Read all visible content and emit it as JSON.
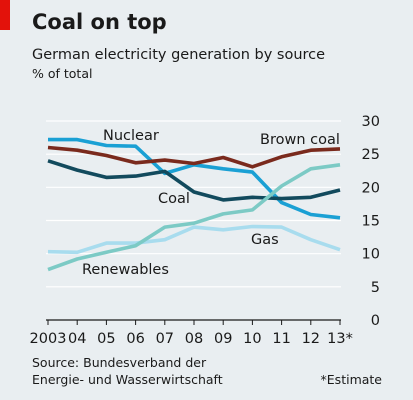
{
  "chart_data": {
    "type": "line",
    "title": "Coal on top",
    "subtitle": "German electricity generation by source",
    "unit_label": "% of total",
    "x": [
      2003,
      2004,
      2005,
      2006,
      2007,
      2008,
      2009,
      2010,
      2011,
      2012,
      2013
    ],
    "x_tick_labels": [
      "2003",
      "04",
      "05",
      "06",
      "07",
      "08",
      "09",
      "10",
      "11",
      "12",
      "13*"
    ],
    "ylim": [
      0,
      30
    ],
    "y_ticks": [
      0,
      5,
      10,
      15,
      20,
      25,
      30
    ],
    "y_tick_labels": [
      "0",
      "5",
      "10",
      "15",
      "20",
      "25",
      "30"
    ],
    "y_axis_side": "right",
    "grid": true,
    "series": [
      {
        "name": "Nuclear",
        "color": "#1aa0d4",
        "values": [
          27.2,
          27.2,
          26.3,
          26.2,
          22.1,
          23.4,
          22.8,
          22.3,
          17.7,
          15.9,
          15.4
        ]
      },
      {
        "name": "Brown coal",
        "color": "#7a2a1d",
        "values": [
          26.0,
          25.6,
          24.8,
          23.7,
          24.1,
          23.6,
          24.5,
          23.1,
          24.6,
          25.6,
          25.8
        ]
      },
      {
        "name": "Coal",
        "color": "#124a5d",
        "values": [
          24.0,
          22.6,
          21.5,
          21.7,
          22.4,
          19.3,
          18.1,
          18.5,
          18.3,
          18.5,
          19.6
        ]
      },
      {
        "name": "Gas",
        "color": "#a8dcee",
        "values": [
          10.3,
          10.2,
          11.6,
          11.6,
          12.1,
          14.0,
          13.6,
          14.1,
          14.0,
          12.1,
          10.6
        ]
      },
      {
        "name": "Renewables",
        "color": "#7ccac5",
        "values": [
          7.6,
          9.2,
          10.2,
          11.2,
          14.0,
          14.6,
          16.0,
          16.6,
          20.2,
          22.8,
          23.4
        ]
      }
    ],
    "source": "Source: Bundesverband der Energie- und Wasserwirtschaft",
    "source_line1": "Source: Bundesverband der",
    "source_line2": "Energie- und Wasserwirtschaft",
    "footnote": "*Estimate",
    "accent_color": "#e3120b",
    "background_color": "#e9eef1"
  }
}
